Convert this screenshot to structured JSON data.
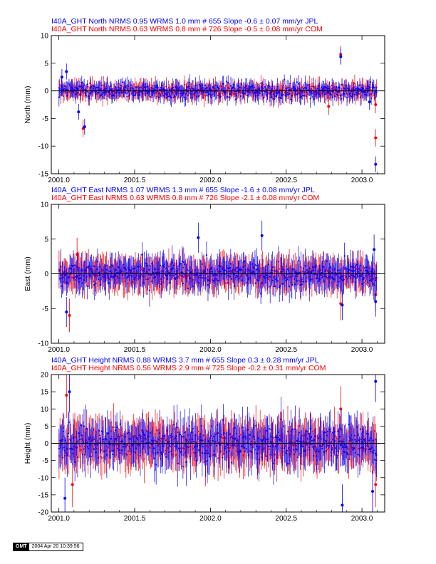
{
  "colors": {
    "jpl": "#0000ff",
    "com": "#ff0000",
    "axis": "#000000",
    "zero": "#000000"
  },
  "stamp": {
    "logo": "GMT",
    "text": "2004 Apr 20 10:39:56"
  },
  "chart_data": [
    {
      "type": "scatter",
      "titles": [
        {
          "text": "I40A_GHT North NRMS 0.95 WRMS  1.0 mm # 655 Slope   -0.6 ±  0.07 mm/yr JPL",
          "color": "#0000ff"
        },
        {
          "text": "I40A_GHT North NRMS 0.63 WRMS  0.8 mm # 726 Slope   -0.5 ±  0.08 mm/yr COM",
          "color": "#ff0000"
        }
      ],
      "ylabel": "North (mm)",
      "xlim": [
        2000.95,
        2003.15
      ],
      "ylim": [
        -15,
        10
      ],
      "xticks": [
        "2001.0",
        "2001.5",
        "2002.0",
        "2002.5",
        "2003.0"
      ],
      "yticks": [
        "-15",
        "-10",
        "-5",
        "0",
        "5",
        "10"
      ],
      "series": [
        {
          "name": "JPL",
          "color": "#0000ff",
          "count": 655,
          "rms": 1.0,
          "err": 1.2,
          "points": [
            [
              2001.05,
              3.5
            ],
            [
              2001.13,
              -3.8
            ],
            [
              2001.17,
              -6.5
            ],
            [
              2002.86,
              6.2
            ],
            [
              2003.09,
              -13.3
            ],
            [
              2003.05,
              -2.0
            ],
            [
              2001.02,
              2.5
            ]
          ]
        },
        {
          "name": "COM",
          "color": "#ff0000",
          "count": 726,
          "rms": 0.8,
          "err": 1.3,
          "points": [
            [
              2001.16,
              -6.8
            ],
            [
              2002.86,
              6.6
            ],
            [
              2003.09,
              -8.5
            ],
            [
              2003.09,
              -2.5
            ],
            [
              2002.78,
              -2.8
            ]
          ]
        }
      ]
    },
    {
      "type": "scatter",
      "titles": [
        {
          "text": "I40A_GHT East NRMS 1.07 WRMS  1.3 mm # 655 Slope   -1.6 ±  0.08 mm/yr JPL",
          "color": "#0000ff"
        },
        {
          "text": "I40A_GHT East NRMS 0.63 WRMS  0.8 mm # 726 Slope   -2.1 ±  0.08 mm/yr COM",
          "color": "#ff0000"
        }
      ],
      "ylabel": "East (mm)",
      "xlim": [
        2000.95,
        2003.15
      ],
      "ylim": [
        -10,
        10
      ],
      "xticks": [
        "2001.0",
        "2001.5",
        "2002.0",
        "2002.5",
        "2003.0"
      ],
      "yticks": [
        "-10",
        "-5",
        "0",
        "5",
        "10"
      ],
      "series": [
        {
          "name": "JPL",
          "color": "#0000ff",
          "count": 655,
          "rms": 1.3,
          "err": 1.8,
          "points": [
            [
              2001.05,
              -5.5
            ],
            [
              2001.92,
              5.2
            ],
            [
              2002.34,
              5.5
            ],
            [
              2002.87,
              -4.5
            ],
            [
              2003.09,
              -4.0
            ],
            [
              2003.08,
              3.5
            ]
          ]
        },
        {
          "name": "COM",
          "color": "#ff0000",
          "count": 726,
          "rms": 0.8,
          "err": 2.0,
          "points": [
            [
              2001.07,
              -6.0
            ],
            [
              2002.86,
              -4.3
            ],
            [
              2003.09,
              -3.0
            ],
            [
              2001.12,
              2.8
            ]
          ]
        }
      ]
    },
    {
      "type": "scatter",
      "titles": [
        {
          "text": "I40A_GHT Height NRMS 0.88 WRMS  3.7 mm # 655 Slope    0.3 ±  0.28 mm/yr JPL",
          "color": "#0000ff"
        },
        {
          "text": "I40A_GHT Height NRMS 0.56 WRMS  2.9 mm # 725 Slope   -0.2 ±  0.31 mm/yr COM",
          "color": "#ff0000"
        }
      ],
      "ylabel": "Height (mm)",
      "xlim": [
        2000.95,
        2003.15
      ],
      "ylim": [
        -20,
        20
      ],
      "xticks": [
        "2001.0",
        "2001.5",
        "2002.0",
        "2002.5",
        "2003.0"
      ],
      "yticks": [
        "-20",
        "-15",
        "-10",
        "-5",
        "0",
        "5",
        "10",
        "15",
        "20"
      ],
      "series": [
        {
          "name": "JPL",
          "color": "#0000ff",
          "count": 655,
          "rms": 3.7,
          "err": 5.0,
          "points": [
            [
              2001.07,
              15.0
            ],
            [
              2003.09,
              18.0
            ],
            [
              2002.87,
              -18.0
            ],
            [
              2001.04,
              -16.0
            ],
            [
              2003.07,
              -14.0
            ]
          ]
        },
        {
          "name": "COM",
          "color": "#ff0000",
          "count": 725,
          "rms": 2.9,
          "err": 5.5,
          "points": [
            [
              2001.05,
              14.0
            ],
            [
              2002.86,
              10.0
            ],
            [
              2001.09,
              -12.0
            ],
            [
              2003.09,
              -12.0
            ]
          ]
        }
      ]
    }
  ]
}
